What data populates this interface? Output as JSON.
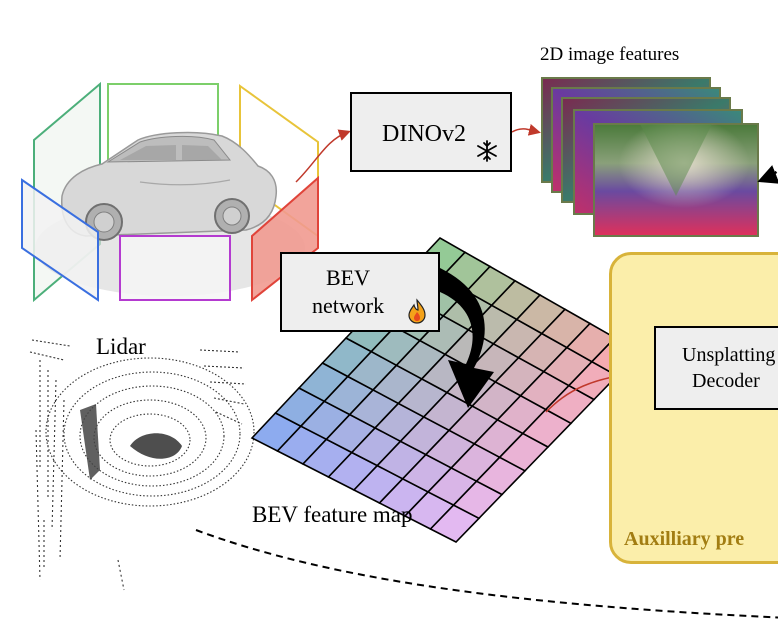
{
  "labels": {
    "image_features": "2D image features",
    "lidar": "Lidar",
    "bev_feature_map": "BEV feature map"
  },
  "boxes": {
    "dinov2": "DINOv2",
    "bev_network_line1": "BEV",
    "bev_network_line2": "network",
    "unsplatting_line1": "Unsplatting",
    "unsplatting_line2": "Decoder"
  },
  "auxiliary": {
    "title": "Auxilliary pre"
  },
  "icons": {
    "frozen": "snowflake-icon",
    "trainable": "flame-icon"
  },
  "colors": {
    "camera_front_left": "#4caf7a",
    "camera_front": "#7ccf6a",
    "camera_front_right": "#e8c43a",
    "camera_left": "#3a6fe0",
    "camera_back": "#b43ad0",
    "camera_right": "#e0443a",
    "arrow_red": "#c0392b",
    "aux_fill": "#fbeeaa",
    "aux_border": "#d8b33a"
  }
}
